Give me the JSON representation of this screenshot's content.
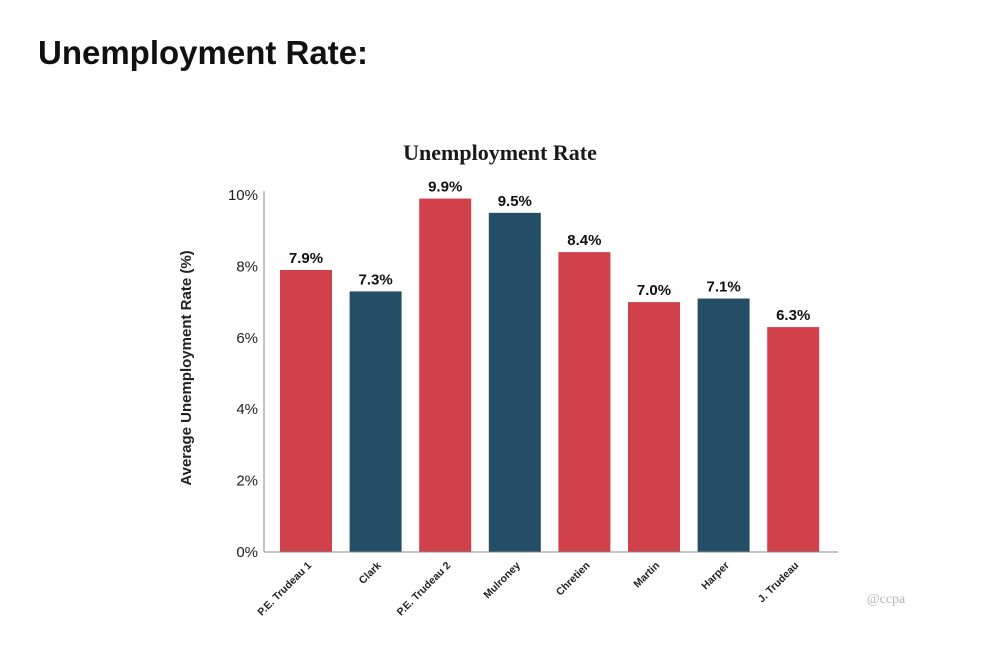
{
  "page": {
    "heading": "Unemployment Rate:"
  },
  "colors": {
    "red": "#d0414c",
    "navy": "#244e66",
    "axis": "#888888"
  },
  "chart_data": {
    "type": "bar",
    "title": "Unemployment Rate",
    "xlabel": "",
    "ylabel": "Average Unemployment Rate (%)",
    "ylim": [
      0,
      10
    ],
    "yticks": [
      0,
      2,
      4,
      6,
      8,
      10
    ],
    "ytick_labels": [
      "0%",
      "2%",
      "4%",
      "6%",
      "8%",
      "10%"
    ],
    "categories": [
      "P.E. Trudeau 1",
      "Clark",
      "P.E. Trudeau 2",
      "Mulroney",
      "Chretien",
      "Martin",
      "Harper",
      "J. Trudeau"
    ],
    "values": [
      7.9,
      7.3,
      9.9,
      9.5,
      8.4,
      7.0,
      7.1,
      6.3
    ],
    "value_labels": [
      "7.9%",
      "7.3%",
      "9.9%",
      "9.5%",
      "8.4%",
      "7.0%",
      "7.1%",
      "6.3%"
    ],
    "bar_colors": [
      "red",
      "navy",
      "red",
      "navy",
      "red",
      "red",
      "navy",
      "red"
    ],
    "grid": false,
    "watermark": "@ccpa"
  }
}
